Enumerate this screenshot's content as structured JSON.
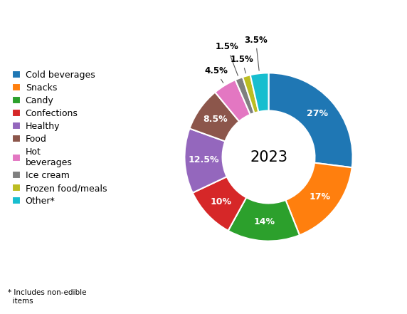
{
  "chart_data": {
    "type": "pie",
    "categories": [
      "Cold beverages",
      "Snacks",
      "Candy",
      "Confections",
      "Healthy",
      "Food",
      "Hot\nbeverages",
      "Ice cream",
      "Frozen food/meals",
      "Other*"
    ],
    "values": [
      27,
      17,
      14,
      10,
      12.5,
      8.5,
      4.5,
      1.5,
      1.5,
      3.5
    ],
    "value_labels": [
      "27%",
      "17%",
      "14%",
      "10%",
      "12.5%",
      "8.5%",
      "4.5%",
      "1.5%",
      "1.5%",
      "3.5%"
    ],
    "data_labels": true,
    "center_text": "2023",
    "footnote": "* Includes non-edible\n  items",
    "legend": "center left"
  }
}
